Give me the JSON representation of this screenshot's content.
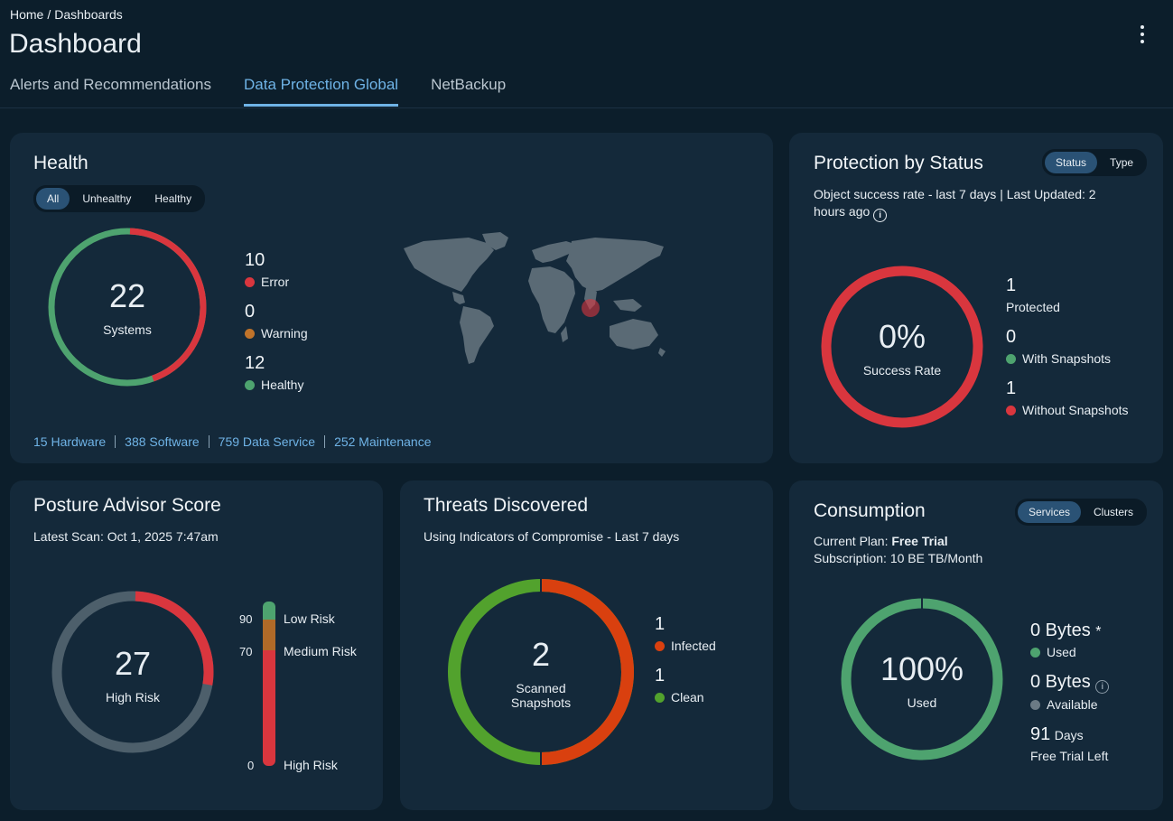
{
  "breadcrumb": {
    "home": "Home",
    "sep": "/",
    "current": "Dashboards"
  },
  "page_title": "Dashboard",
  "tabs": [
    {
      "label": "Alerts and Recommendations",
      "active": false
    },
    {
      "label": "Data Protection Global",
      "active": true
    },
    {
      "label": "NetBackup",
      "active": false
    }
  ],
  "health": {
    "title": "Health",
    "filters": [
      "All",
      "Unhealthy",
      "Healthy"
    ],
    "selected_filter": "All",
    "total": "22",
    "total_label": "Systems",
    "error": {
      "count": "10",
      "label": "Error",
      "color": "#d9363e"
    },
    "warning": {
      "count": "0",
      "label": "Warning",
      "color": "#c0732a"
    },
    "healthy": {
      "count": "12",
      "label": "Healthy",
      "color": "#4ea36f"
    },
    "links": [
      "15 Hardware",
      "388 Software",
      "759 Data Service",
      "252 Maintenance"
    ]
  },
  "protection": {
    "title": "Protection by Status",
    "toggle": [
      "Status",
      "Type"
    ],
    "selected_toggle": "Status",
    "subtitle_line1": "Object success rate - last 7 days | Last Updated: 2",
    "subtitle_line2": "hours ago",
    "rate": "0%",
    "rate_label": "Success Rate",
    "protected": {
      "count": "1",
      "label": "Protected"
    },
    "with_snapshots": {
      "count": "0",
      "label": "With Snapshots",
      "color": "#4ea36f"
    },
    "without_snapshots": {
      "count": "1",
      "label": "Without Snapshots",
      "color": "#d9363e"
    }
  },
  "posture": {
    "title": "Posture Advisor Score",
    "subtitle": "Latest Scan: Oct 1, 2025 7:47am",
    "score": "27",
    "score_label": "High Risk",
    "scale": [
      {
        "value": "90",
        "label": "Low Risk"
      },
      {
        "value": "70",
        "label": "Medium Risk"
      },
      {
        "value": "0",
        "label": "High Risk"
      }
    ],
    "colors": {
      "low": "#4ea36f",
      "medium": "#b06a28",
      "high": "#d9363e",
      "track": "#4d5f6b"
    }
  },
  "threats": {
    "title": "Threats Discovered",
    "subtitle": "Using Indicators of Compromise - Last 7 days",
    "total": "2",
    "total_label_1": "Scanned",
    "total_label_2": "Snapshots",
    "infected": {
      "count": "1",
      "label": "Infected",
      "color": "#d9400f"
    },
    "clean": {
      "count": "1",
      "label": "Clean",
      "color": "#52a22d"
    }
  },
  "consumption": {
    "title": "Consumption",
    "toggle": [
      "Services",
      "Clusters"
    ],
    "selected_toggle": "Services",
    "plan_prefix": "Current Plan: ",
    "plan": "Free Trial",
    "subscription": "Subscription: 10 BE TB/Month",
    "percent": "100%",
    "percent_label": "Used",
    "used": {
      "value": "0 Bytes",
      "mark": "*",
      "label": "Used",
      "color": "#4ea36f"
    },
    "available": {
      "value": "0 Bytes",
      "label": "Available",
      "color": "#6b7a85"
    },
    "days": "91",
    "days_unit": "Days",
    "days_label": "Free Trial Left"
  }
}
